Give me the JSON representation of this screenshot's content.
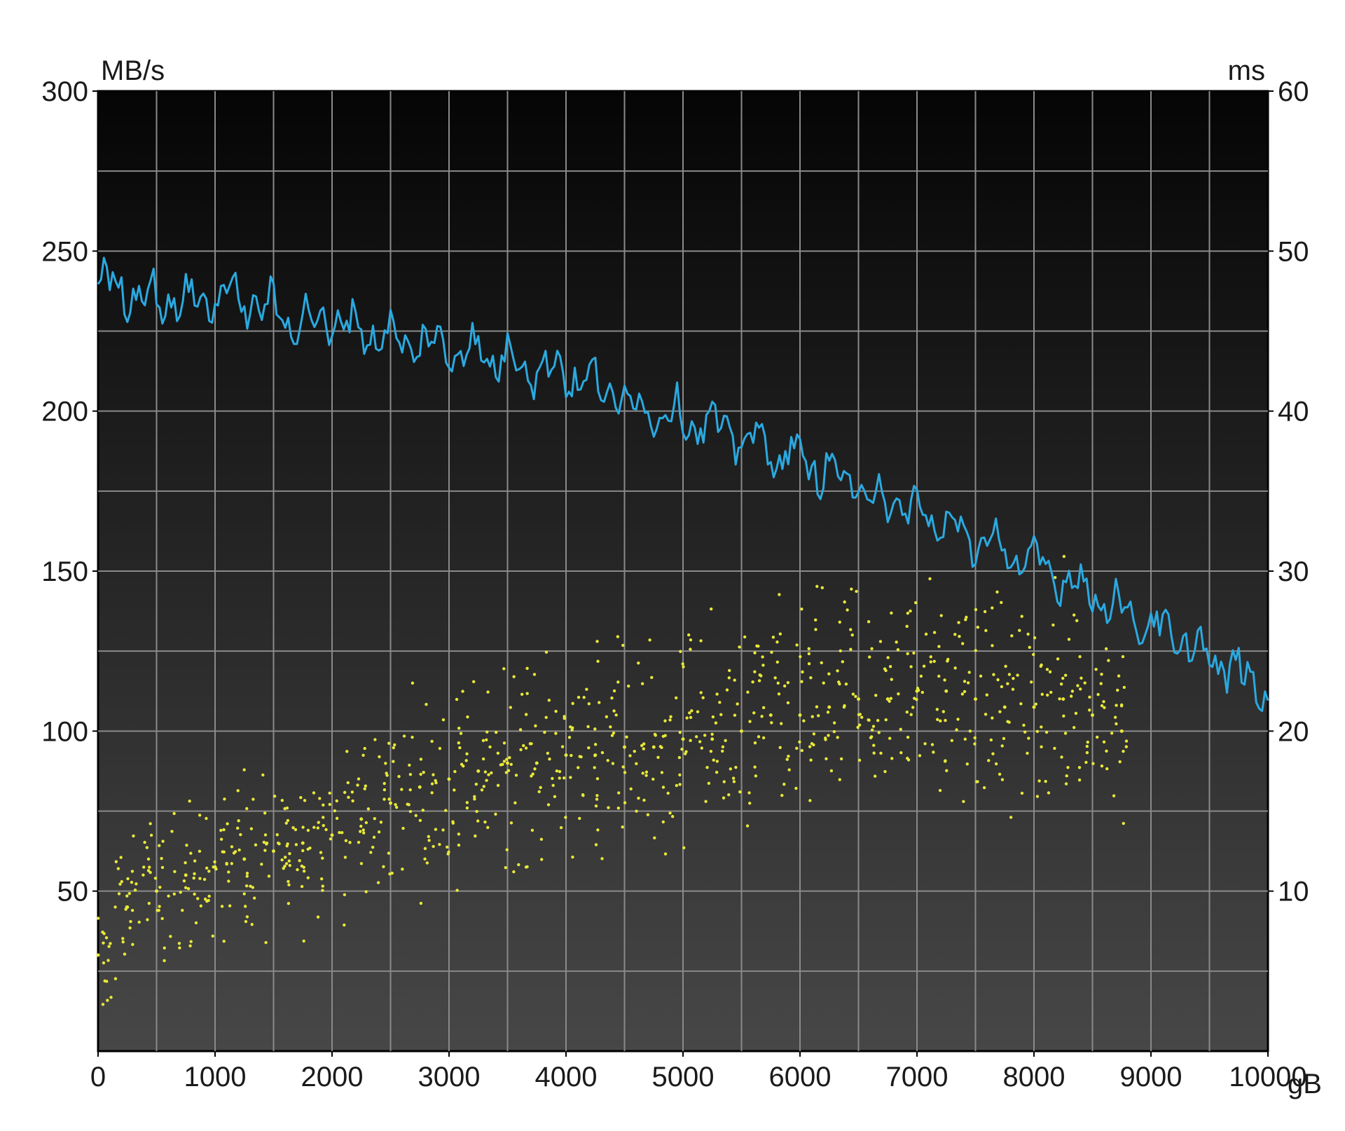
{
  "chart_data": {
    "type": "line",
    "title": "",
    "left_axis_unit": "MB/s",
    "right_axis_unit": "ms",
    "x_unit": "gB",
    "xlim": [
      0,
      10000
    ],
    "ylim_left": [
      0,
      300
    ],
    "ylim_right": [
      0,
      60
    ],
    "x_ticks": [
      "0",
      "1000",
      "2000",
      "3000",
      "4000",
      "5000",
      "6000",
      "7000",
      "8000",
      "9000",
      "10000"
    ],
    "y_left_ticks": [
      "300",
      "250",
      "200",
      "150",
      "100",
      "50"
    ],
    "y_right_ticks": [
      "60",
      "50",
      "40",
      "30",
      "20",
      "10"
    ],
    "grid": true,
    "colors": {
      "transfer_rate": "#2aa9e0",
      "access_time": "#e8e83a",
      "plot_bg_top": "#050505",
      "plot_bg_bottom": "#474747",
      "grid": "#8a8a8a"
    },
    "series": [
      {
        "axis": "left",
        "kind": "line",
        "x": [
          0,
          250,
          500,
          750,
          1000,
          1250,
          1500,
          1750,
          2000,
          2250,
          2500,
          2750,
          3000,
          3250,
          3500,
          3750,
          4000,
          4250,
          4500,
          4750,
          5000,
          5250,
          5500,
          5750,
          6000,
          6250,
          6500,
          6750,
          7000,
          7250,
          7500,
          7750,
          8000,
          8250,
          8500,
          8750,
          9000,
          9250,
          9500,
          9750,
          10000
        ],
        "values": [
          240,
          238,
          235,
          234,
          236,
          235,
          231,
          228,
          228,
          226,
          222,
          221,
          220,
          218,
          216,
          214,
          212,
          208,
          204,
          200,
          198,
          195,
          192,
          188,
          185,
          181,
          176,
          172,
          168,
          164,
          160,
          156,
          152,
          148,
          143,
          138,
          133,
          128,
          123,
          118,
          112
        ]
      },
      {
        "axis": "right",
        "kind": "scatter",
        "x": [
          0,
          250,
          500,
          750,
          1000,
          1250,
          1500,
          1750,
          2000,
          2250,
          2500,
          2750,
          3000,
          3250,
          3500,
          3750,
          4000,
          4250,
          4500,
          4750,
          5000,
          5250,
          5500,
          5750,
          6000,
          6250,
          6500,
          6750,
          7000,
          7250,
          7500,
          7750,
          8000,
          8250,
          8500,
          8750
        ],
        "values": [
          6,
          9,
          10,
          11,
          11.5,
          12,
          12.5,
          13,
          13.5,
          14.5,
          15.5,
          16.5,
          17,
          17.5,
          18,
          18,
          18.5,
          18.5,
          19,
          19,
          19.5,
          19.5,
          20,
          21,
          21,
          21.5,
          22,
          22,
          22.5,
          22.5,
          22,
          21.5,
          21.5,
          22,
          21,
          20
        ]
      }
    ]
  }
}
